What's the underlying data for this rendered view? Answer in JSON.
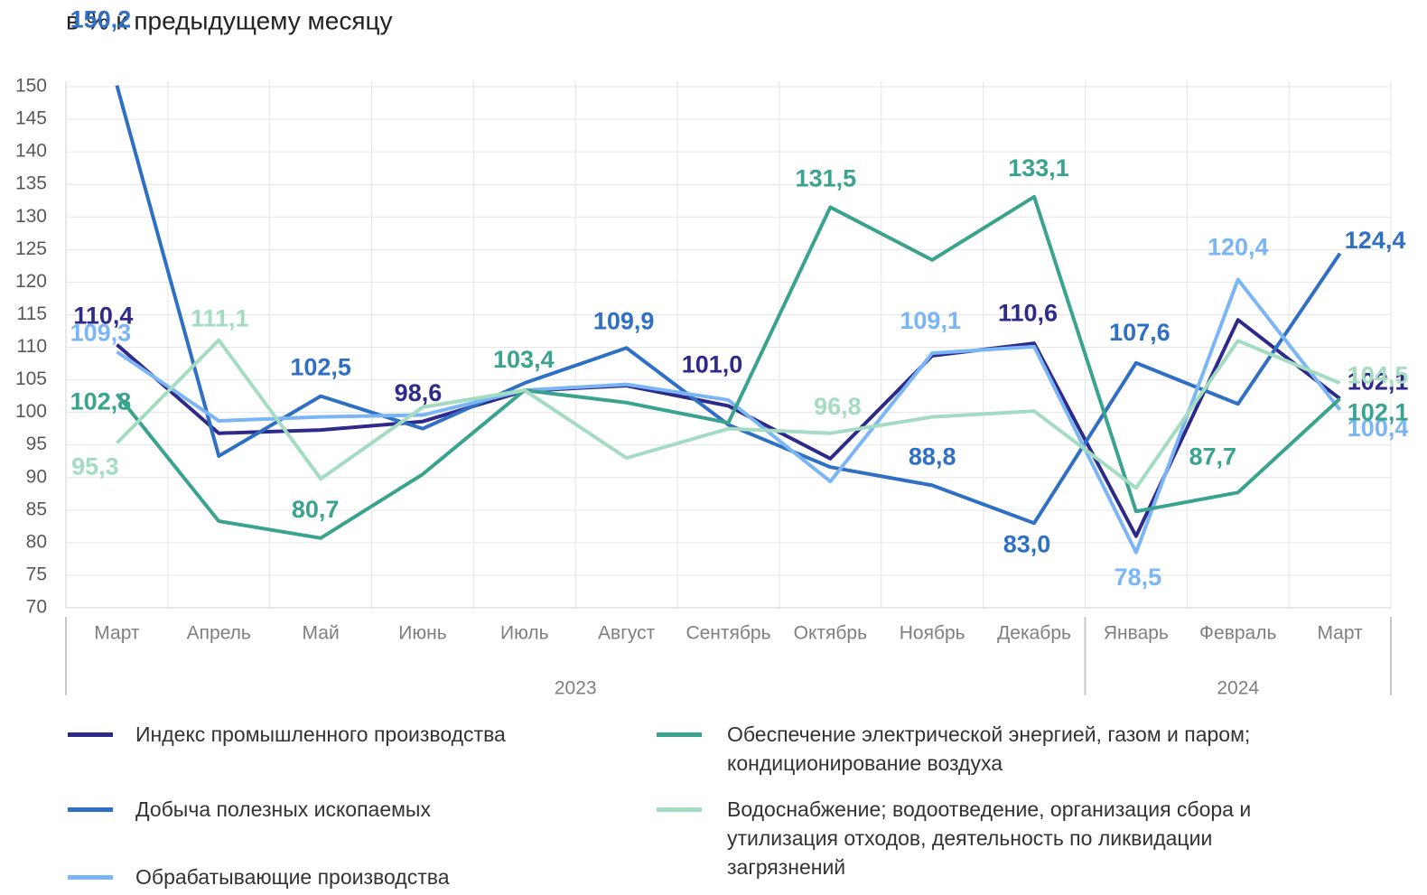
{
  "chart_data": {
    "type": "line",
    "subtitle": "в % к предыдущему месяцу",
    "category_groups": [
      {
        "label": "2023",
        "categories": [
          "Март",
          "Апрель",
          "Май",
          "Июнь",
          "Июль",
          "Август",
          "Сентябрь",
          "Октябрь",
          "Ноябрь",
          "Декабрь"
        ]
      },
      {
        "label": "2024",
        "categories": [
          "Январь",
          "Февраль",
          "Март"
        ]
      }
    ],
    "ylim": [
      70,
      150
    ],
    "yticks": [
      70,
      75,
      80,
      85,
      90,
      95,
      100,
      105,
      110,
      115,
      120,
      125,
      130,
      135,
      140,
      145,
      150
    ],
    "grid": true,
    "series": [
      {
        "name": "Индекс промышленного производства",
        "color": "#2e2a8a",
        "values": [
          110.4,
          96.8,
          97.3,
          98.6,
          103.3,
          104.1,
          101.0,
          92.9,
          108.7,
          110.6,
          81.0,
          114.2,
          102.1
        ],
        "value_labels": [
          "110,4",
          null,
          null,
          "98,6",
          null,
          null,
          "101,0",
          null,
          null,
          "110,6",
          null,
          null,
          "102,1"
        ]
      },
      {
        "name": "Добыча полезных ископаемых",
        "color": "#2f6fc4",
        "values": [
          150.2,
          93.3,
          102.5,
          97.5,
          104.5,
          109.9,
          98.1,
          91.6,
          88.8,
          83.0,
          107.6,
          101.3,
          124.4
        ],
        "value_labels": [
          "150,2",
          null,
          "102,5",
          null,
          null,
          "109,9",
          null,
          null,
          "88,8",
          "83,0",
          "107,6",
          null,
          "124,4"
        ]
      },
      {
        "name": "Обрабатывающие производства",
        "color": "#7ab5f5",
        "values": [
          109.3,
          98.7,
          99.3,
          99.6,
          103.4,
          104.3,
          101.9,
          89.4,
          109.1,
          110.1,
          78.5,
          120.4,
          100.4
        ],
        "value_labels": [
          "109,3",
          null,
          null,
          null,
          null,
          null,
          null,
          null,
          "109,1",
          null,
          "78,5",
          "120,4",
          "100,4"
        ]
      },
      {
        "name": "Обеспечение электрической энергией, газом и паром; кондиционирование воздуха",
        "color": "#3aa38e",
        "values": [
          102.8,
          83.3,
          80.7,
          90.5,
          103.4,
          101.5,
          98.4,
          131.5,
          123.4,
          133.1,
          84.8,
          87.7,
          102.1
        ],
        "value_labels": [
          "102,8",
          null,
          "80,7",
          null,
          "103,4",
          null,
          null,
          "131,5",
          null,
          "133,1",
          null,
          "87,7",
          "102,1"
        ]
      },
      {
        "name": "Водоснабжение; водоотведение, организация сбора и утилизация отходов, деятельность по ликвидации загрязнений",
        "color": "#a3dcc0",
        "values": [
          95.3,
          111.1,
          89.8,
          100.8,
          103.4,
          93.0,
          97.5,
          96.8,
          99.3,
          100.2,
          88.4,
          111.0,
          104.5
        ],
        "value_labels": [
          "95,3",
          "111,1",
          null,
          null,
          null,
          null,
          null,
          "96,8",
          null,
          null,
          null,
          null,
          "104,5"
        ]
      }
    ]
  }
}
